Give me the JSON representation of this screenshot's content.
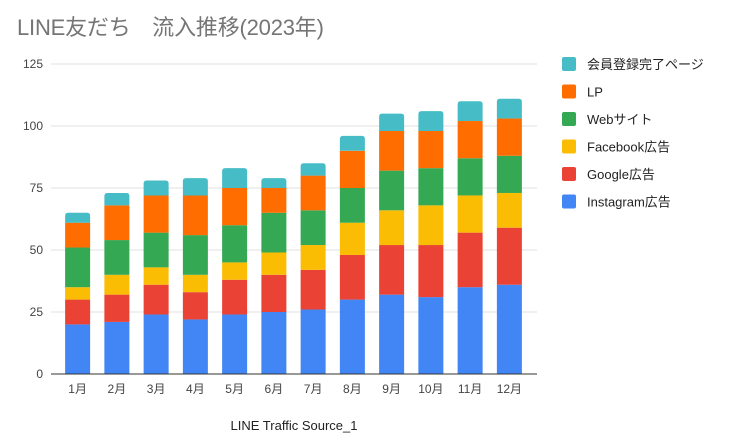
{
  "chart_data": {
    "type": "bar",
    "stacked": true,
    "title": "LINE友だち　流入推移(2023年)",
    "xlabel": "LINE Traffic Source_1",
    "ylabel": "",
    "ylim": [
      0,
      125
    ],
    "yticks": [
      0,
      25,
      50,
      75,
      100,
      125
    ],
    "grid": true,
    "legend_position": "right",
    "categories": [
      "1月",
      "2月",
      "3月",
      "4月",
      "5月",
      "6月",
      "7月",
      "8月",
      "9月",
      "10月",
      "11月",
      "12月"
    ],
    "series": [
      {
        "name": "Instagram広告",
        "color": "#4285f4",
        "values": [
          20,
          21,
          24,
          22,
          24,
          25,
          26,
          30,
          32,
          31,
          35,
          36
        ]
      },
      {
        "name": "Google広告",
        "color": "#ea4335",
        "values": [
          10,
          11,
          12,
          11,
          14,
          15,
          16,
          18,
          20,
          21,
          22,
          23
        ]
      },
      {
        "name": "Facebook広告",
        "color": "#fbbc04",
        "values": [
          5,
          8,
          7,
          7,
          7,
          9,
          10,
          13,
          14,
          16,
          15,
          14
        ]
      },
      {
        "name": "Webサイト",
        "color": "#34a853",
        "values": [
          16,
          14,
          14,
          16,
          15,
          16,
          14,
          14,
          16,
          15,
          15,
          15
        ]
      },
      {
        "name": "LP",
        "color": "#ff6d01",
        "values": [
          10,
          14,
          15,
          16,
          15,
          10,
          14,
          15,
          16,
          15,
          15,
          15
        ]
      },
      {
        "name": "会員登録完了ページ",
        "color": "#46bdc6",
        "values": [
          4,
          5,
          6,
          7,
          8,
          4,
          5,
          6,
          7,
          8,
          8,
          8
        ]
      }
    ],
    "legend_order": [
      "会員登録完了ページ",
      "LP",
      "Webサイト",
      "Facebook広告",
      "Google広告",
      "Instagram広告"
    ]
  }
}
